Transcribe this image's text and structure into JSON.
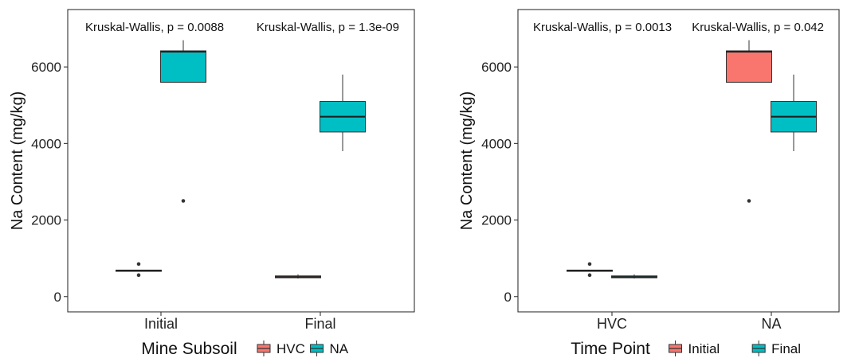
{
  "chart_data": [
    {
      "type": "box",
      "ylabel": "Na Content (mg/kg)",
      "xlabel": "",
      "legend": {
        "title": "Mine Subsoil",
        "position": "bottom",
        "entries": [
          {
            "label": "HVC",
            "color": "#F8766D"
          },
          {
            "label": "NA",
            "color": "#00BFC4"
          }
        ]
      },
      "categories": [
        "Initial",
        "Final"
      ],
      "annotations": [
        "Kruskal-Wallis, p = 0.0088",
        "Kruskal-Wallis, p = 1.3e-09"
      ],
      "ylim": [
        -400,
        7500
      ],
      "yticks": [
        0,
        2000,
        4000,
        6000
      ],
      "grid": false,
      "boxes": [
        {
          "category": "Initial",
          "group": "HVC",
          "color": "#F8766D",
          "q1": 670,
          "median": 680,
          "q3": 690,
          "whisker_low": 670,
          "whisker_high": 690,
          "outliers": [
            560,
            850
          ]
        },
        {
          "category": "Initial",
          "group": "NA",
          "color": "#00BFC4",
          "q1": 5600,
          "median": 6400,
          "q3": 6420,
          "whisker_low": 5600,
          "whisker_high": 6700,
          "outliers": [
            2500
          ]
        },
        {
          "category": "Final",
          "group": "HVC",
          "color": "#F8766D",
          "q1": 490,
          "median": 510,
          "q3": 540,
          "whisker_low": 470,
          "whisker_high": 580,
          "outliers": []
        },
        {
          "category": "Final",
          "group": "NA",
          "color": "#00BFC4",
          "q1": 4300,
          "median": 4700,
          "q3": 5100,
          "whisker_low": 3800,
          "whisker_high": 5800,
          "outliers": []
        }
      ]
    },
    {
      "type": "box",
      "ylabel": "Na Content (mg/kg)",
      "xlabel": "",
      "legend": {
        "title": "Time Point",
        "position": "bottom",
        "entries": [
          {
            "label": "Initial",
            "color": "#F8766D"
          },
          {
            "label": "Final",
            "color": "#00BFC4"
          }
        ]
      },
      "categories": [
        "HVC",
        "NA"
      ],
      "annotations": [
        "Kruskal-Wallis, p = 0.0013",
        "Kruskal-Wallis, p = 0.042"
      ],
      "ylim": [
        -400,
        7500
      ],
      "yticks": [
        0,
        2000,
        4000,
        6000
      ],
      "grid": false,
      "boxes": [
        {
          "category": "HVC",
          "group": "Initial",
          "color": "#F8766D",
          "q1": 670,
          "median": 680,
          "q3": 690,
          "whisker_low": 670,
          "whisker_high": 690,
          "outliers": [
            560,
            850
          ]
        },
        {
          "category": "HVC",
          "group": "Final",
          "color": "#00BFC4",
          "q1": 490,
          "median": 510,
          "q3": 540,
          "whisker_low": 470,
          "whisker_high": 580,
          "outliers": []
        },
        {
          "category": "NA",
          "group": "Initial",
          "color": "#F8766D",
          "q1": 5600,
          "median": 6400,
          "q3": 6420,
          "whisker_low": 5600,
          "whisker_high": 6700,
          "outliers": [
            2500
          ]
        },
        {
          "category": "NA",
          "group": "Final",
          "color": "#00BFC4",
          "q1": 4300,
          "median": 4700,
          "q3": 5100,
          "whisker_low": 3800,
          "whisker_high": 5800,
          "outliers": []
        }
      ]
    }
  ]
}
